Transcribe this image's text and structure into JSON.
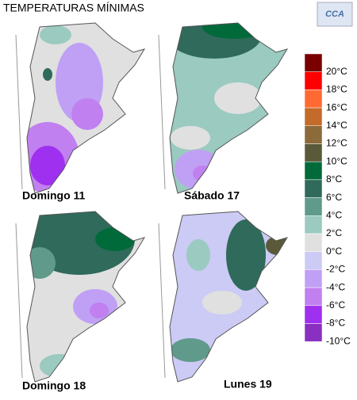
{
  "header": {
    "title": "TEMPERATURAS MÍNIMAS",
    "logo": "CCA"
  },
  "maps": [
    {
      "label": "Domingo 11"
    },
    {
      "label": "Sábado 17"
    },
    {
      "label": "Domingo 18"
    },
    {
      "label": "Lunes 19"
    }
  ],
  "legend": {
    "colors": [
      "#7a0000",
      "#ff0000",
      "#ff6a33",
      "#c46a2a",
      "#8c6a3a",
      "#5a5a3a",
      "#006a3a",
      "#2f6a5a",
      "#5f9a8a",
      "#9acac0",
      "#e0e0e0",
      "#cbcbf5",
      "#c0a0f5",
      "#c080f0",
      "#a030f0",
      "#8a30c0"
    ],
    "labels": [
      "20°C",
      "18°C",
      "16°C",
      "14°C",
      "12°C",
      "10°C",
      "8°C",
      "6°C",
      "4°C",
      "2°C",
      "0°C",
      "-2°C",
      "-4°C",
      "-6°C",
      "-8°C",
      "-10°C"
    ]
  }
}
